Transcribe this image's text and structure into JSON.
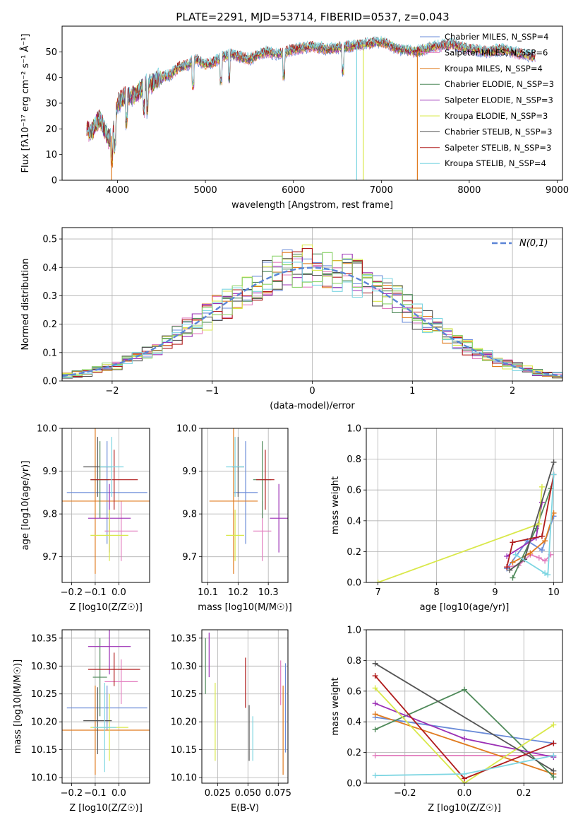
{
  "figure": {
    "title": "PLATE=2291, MJD=53714, FIBERID=0537, z=0.043"
  },
  "chart_data": [
    {
      "id": "spectrum",
      "type": "line",
      "xlabel": "wavelength [Angstrom, rest frame]",
      "ylabel": "Flux [fλ10⁻¹⁷ erg cm⁻² s⁻¹ Å⁻¹]",
      "xlim": [
        3370,
        9060
      ],
      "ylim": [
        0,
        60
      ],
      "xticks": [
        4000,
        5000,
        6000,
        7000,
        8000,
        9000
      ],
      "yticks": [
        0,
        10,
        20,
        30,
        40,
        50
      ],
      "envelope": {
        "x": [
          3650,
          3700,
          3750,
          3800,
          3850,
          3900,
          3950,
          4000,
          4100,
          4200,
          4300,
          4400,
          4500,
          4600,
          4700,
          4800,
          4900,
          5000,
          5100,
          5200,
          5300,
          5400,
          5500,
          5600,
          5700,
          5800,
          5900,
          6000,
          6200,
          6400,
          6600,
          6800,
          7000,
          7200,
          7400,
          7600,
          7800,
          8000,
          8200,
          8400,
          8600,
          8750
        ],
        "y": [
          20,
          18,
          22,
          24,
          20,
          16,
          18,
          30,
          33,
          33,
          37,
          38,
          40,
          41,
          44,
          45,
          47,
          45,
          46,
          48,
          49,
          48,
          47,
          49,
          50,
          49,
          50,
          51,
          52,
          51,
          52,
          53,
          54,
          51,
          50,
          52,
          53,
          51,
          50,
          51,
          49,
          48
        ]
      },
      "series": [
        {
          "name": "Chabrier MILES, N_SSP=4",
          "color": "#6a8bd8"
        },
        {
          "name": "Salpeter MILES, N_SSP=6",
          "color": "#e37ebf"
        },
        {
          "name": "Kroupa MILES, N_SSP=4",
          "color": "#e07b1f"
        },
        {
          "name": "Chabrier ELODIE, N_SSP=3",
          "color": "#4f8a5a"
        },
        {
          "name": "Salpeter ELODIE, N_SSP=3",
          "color": "#9b2fb5"
        },
        {
          "name": "Kroupa ELODIE, N_SSP=3",
          "color": "#d9e84a"
        },
        {
          "name": "Chabrier STELIB, N_SSP=3",
          "color": "#555555"
        },
        {
          "name": "Salpeter STELIB, N_SSP=3",
          "color": "#b01c1c"
        },
        {
          "name": "Kroupa STELIB, N_SSP=4",
          "color": "#7ed6e2"
        }
      ]
    },
    {
      "id": "residuals",
      "type": "line",
      "xlabel": "(data-model)/error",
      "ylabel": "Normed distribution",
      "xlim": [
        -2.5,
        2.5
      ],
      "ylim": [
        0,
        0.54
      ],
      "xticks": [
        -2,
        -1,
        0,
        1,
        2
      ],
      "yticks": [
        0.0,
        0.1,
        0.2,
        0.3,
        0.4,
        0.5
      ],
      "grid": true,
      "legend": {
        "label": "N(0,1)",
        "position": "top-right"
      },
      "hist_bin_width": 0.1,
      "hist_colors": [
        "#6a8bd8",
        "#e37ebf",
        "#e07b1f",
        "#4f8a5a",
        "#9b2fb5",
        "#d9e84a",
        "#555555",
        "#b01c1c",
        "#7ed6e2",
        "#8bd36a"
      ]
    },
    {
      "id": "age-vs-Z",
      "type": "scatter",
      "xlabel": "Z [log10(Z/Z☉)]",
      "ylabel": "age  [log10(age/yr)]",
      "xlim": [
        -0.24,
        0.13
      ],
      "ylim": [
        9.64,
        10.0
      ],
      "xticks": [
        -0.2,
        -0.1,
        0.0
      ],
      "yticks": [
        9.7,
        9.8,
        9.9,
        10.0
      ],
      "grid": true,
      "points": [
        {
          "x": -0.05,
          "y": 9.85,
          "xerr": 0.17,
          "yerr": 0.12,
          "color": "#6a8bd8"
        },
        {
          "x": 0.01,
          "y": 9.76,
          "xerr": 0.07,
          "yerr": 0.07,
          "color": "#e37ebf"
        },
        {
          "x": -0.1,
          "y": 9.83,
          "xerr": 0.3,
          "yerr": 0.17,
          "color": "#e07b1f"
        },
        {
          "x": -0.08,
          "y": 9.88,
          "xerr": 0.04,
          "yerr": 0.09,
          "color": "#4f8a5a"
        },
        {
          "x": -0.04,
          "y": 9.79,
          "xerr": 0.09,
          "yerr": 0.08,
          "color": "#9b2fb5"
        },
        {
          "x": -0.04,
          "y": 9.75,
          "xerr": 0.08,
          "yerr": 0.06,
          "color": "#d9e84a"
        },
        {
          "x": -0.09,
          "y": 9.91,
          "xerr": 0.06,
          "yerr": 0.07,
          "color": "#555555"
        },
        {
          "x": -0.02,
          "y": 9.88,
          "xerr": 0.1,
          "yerr": 0.07,
          "color": "#b01c1c"
        },
        {
          "x": -0.03,
          "y": 9.91,
          "xerr": 0.05,
          "yerr": 0.07,
          "color": "#7ed6e2"
        }
      ]
    },
    {
      "id": "age-vs-mass",
      "type": "scatter",
      "xlabel": "mass [log10(M/M☉)]",
      "xlim": [
        10.08,
        10.365
      ],
      "ylim": [
        9.64,
        10.0
      ],
      "xticks": [
        10.1,
        10.2,
        10.3
      ],
      "yticks": [
        9.7,
        9.8,
        9.9,
        10.0
      ],
      "grid": true,
      "points": [
        {
          "x": 10.225,
          "y": 9.85,
          "xerr": 0.04,
          "yerr": 0.12,
          "color": "#6a8bd8"
        },
        {
          "x": 10.28,
          "y": 9.76,
          "xerr": 0.03,
          "yerr": 0.07,
          "color": "#e37ebf"
        },
        {
          "x": 10.185,
          "y": 9.83,
          "xerr": 0.08,
          "yerr": 0.17,
          "color": "#e07b1f"
        },
        {
          "x": 10.28,
          "y": 9.88,
          "xerr": 0.03,
          "yerr": 0.09,
          "color": "#4f8a5a"
        },
        {
          "x": 10.335,
          "y": 9.79,
          "xerr": 0.03,
          "yerr": 0.08,
          "color": "#9b2fb5"
        },
        {
          "x": 10.19,
          "y": 9.75,
          "xerr": 0.03,
          "yerr": 0.06,
          "color": "#d9e84a"
        },
        {
          "x": 10.2,
          "y": 9.91,
          "xerr": 0.02,
          "yerr": 0.07,
          "color": "#555555"
        },
        {
          "x": 10.29,
          "y": 9.88,
          "xerr": 0.03,
          "yerr": 0.07,
          "color": "#b01c1c"
        },
        {
          "x": 10.19,
          "y": 9.91,
          "xerr": 0.03,
          "yerr": 0.07,
          "color": "#7ed6e2"
        }
      ]
    },
    {
      "id": "mass-weight-vs-age",
      "type": "line",
      "xlabel": "age  [log10(age/yr)]",
      "ylabel": "mass weight",
      "xlim": [
        6.8,
        10.15
      ],
      "ylim": [
        0,
        1.0
      ],
      "xticks": [
        7,
        8,
        9,
        10
      ],
      "yticks": [
        0.0,
        0.2,
        0.4,
        0.6,
        0.8,
        1.0
      ],
      "grid": true,
      "series": [
        {
          "color": "#6a8bd8",
          "x": [
            9.2,
            9.55,
            9.8,
            10.0
          ],
          "y": [
            0.09,
            0.27,
            0.21,
            0.43
          ]
        },
        {
          "color": "#e37ebf",
          "x": [
            9.2,
            9.4,
            9.6,
            9.75,
            9.85,
            9.95
          ],
          "y": [
            0.1,
            0.11,
            0.18,
            0.16,
            0.14,
            0.18
          ]
        },
        {
          "color": "#e07b1f",
          "x": [
            9.3,
            9.6,
            9.85,
            10.0
          ],
          "y": [
            0.13,
            0.19,
            0.27,
            0.45
          ]
        },
        {
          "color": "#4f8a5a",
          "x": [
            9.3,
            9.7,
            9.95
          ],
          "y": [
            0.03,
            0.35,
            0.61
          ]
        },
        {
          "color": "#9b2fb5",
          "x": [
            9.2,
            9.7,
            9.8
          ],
          "y": [
            0.17,
            0.29,
            0.52
          ]
        },
        {
          "color": "#d9e84a",
          "x": [
            7.0,
            9.75,
            9.8
          ],
          "y": [
            0.0,
            0.38,
            0.62
          ]
        },
        {
          "color": "#555555",
          "x": [
            9.25,
            9.5,
            10.0
          ],
          "y": [
            0.08,
            0.15,
            0.78
          ]
        },
        {
          "color": "#b01c1c",
          "x": [
            9.2,
            9.3,
            9.8,
            10.0
          ],
          "y": [
            0.1,
            0.26,
            0.3,
            0.7
          ]
        },
        {
          "color": "#7ed6e2",
          "x": [
            9.35,
            9.85,
            9.9,
            10.0
          ],
          "y": [
            0.18,
            0.06,
            0.05,
            0.7
          ]
        }
      ]
    },
    {
      "id": "mass-vs-Z",
      "type": "scatter",
      "xlabel": "Z [log10(Z/Z☉)]",
      "ylabel": "mass [log10(M/M☉)]",
      "xlim": [
        -0.24,
        0.13
      ],
      "ylim": [
        10.09,
        10.365
      ],
      "xticks": [
        -0.2,
        -0.1,
        0.0
      ],
      "yticks": [
        10.1,
        10.15,
        10.2,
        10.25,
        10.3,
        10.35
      ],
      "grid": true,
      "points": [
        {
          "x": -0.05,
          "y": 10.225,
          "xerr": 0.17,
          "yerr": 0.04,
          "color": "#6a8bd8"
        },
        {
          "x": 0.01,
          "y": 10.272,
          "xerr": 0.07,
          "yerr": 0.04,
          "color": "#e37ebf"
        },
        {
          "x": -0.1,
          "y": 10.185,
          "xerr": 0.3,
          "yerr": 0.08,
          "color": "#e07b1f"
        },
        {
          "x": -0.08,
          "y": 10.28,
          "xerr": 0.03,
          "yerr": 0.07,
          "color": "#4f8a5a"
        },
        {
          "x": -0.04,
          "y": 10.335,
          "xerr": 0.09,
          "yerr": 0.05,
          "color": "#9b2fb5"
        },
        {
          "x": -0.04,
          "y": 10.19,
          "xerr": 0.08,
          "yerr": 0.06,
          "color": "#d9e84a"
        },
        {
          "x": -0.09,
          "y": 10.202,
          "xerr": 0.06,
          "yerr": 0.06,
          "color": "#555555"
        },
        {
          "x": -0.02,
          "y": 10.294,
          "xerr": 0.11,
          "yerr": 0.03,
          "color": "#b01c1c"
        },
        {
          "x": -0.06,
          "y": 10.19,
          "xerr": 0.05,
          "yerr": 0.08,
          "color": "#7ed6e2"
        }
      ]
    },
    {
      "id": "mass-vs-EBV",
      "type": "scatter",
      "xlabel": "E(B-V)",
      "xlim": [
        0.012,
        0.083
      ],
      "ylim": [
        10.09,
        10.365
      ],
      "xticks": [
        0.025,
        0.05,
        0.075
      ],
      "yticks": [
        10.1,
        10.15,
        10.2,
        10.25,
        10.3,
        10.35
      ],
      "grid": true,
      "points": [
        {
          "x": 0.081,
          "y": 10.225,
          "xerr": 0,
          "yerr": 0.08,
          "color": "#6a8bd8"
        },
        {
          "x": 0.077,
          "y": 10.27,
          "xerr": 0,
          "yerr": 0.04,
          "color": "#e37ebf"
        },
        {
          "x": 0.079,
          "y": 10.185,
          "xerr": 0,
          "yerr": 0.08,
          "color": "#e07b1f"
        },
        {
          "x": 0.015,
          "y": 10.3,
          "xerr": 0,
          "yerr": 0.05,
          "color": "#4f8a5a"
        },
        {
          "x": 0.018,
          "y": 10.32,
          "xerr": 0,
          "yerr": 0.04,
          "color": "#9b2fb5"
        },
        {
          "x": 0.023,
          "y": 10.2,
          "xerr": 0,
          "yerr": 0.07,
          "color": "#d9e84a"
        },
        {
          "x": 0.051,
          "y": 10.18,
          "xerr": 0,
          "yerr": 0.05,
          "color": "#555555"
        },
        {
          "x": 0.048,
          "y": 10.27,
          "xerr": 0,
          "yerr": 0.045,
          "color": "#b01c1c"
        },
        {
          "x": 0.054,
          "y": 10.17,
          "xerr": 0,
          "yerr": 0.04,
          "color": "#7ed6e2"
        }
      ]
    },
    {
      "id": "mass-weight-vs-Z",
      "type": "line",
      "xlabel": "Z [log10(Z/Z☉)]",
      "ylabel": "mass weight",
      "xlim": [
        -0.33,
        0.33
      ],
      "ylim": [
        0,
        1.0
      ],
      "xticks": [
        -0.2,
        0.0,
        0.2
      ],
      "yticks": [
        0.0,
        0.2,
        0.4,
        0.6,
        0.8,
        1.0
      ],
      "grid": true,
      "series": [
        {
          "color": "#6a8bd8",
          "x": [
            -0.3,
            0.3
          ],
          "y": [
            0.43,
            0.26
          ]
        },
        {
          "color": "#e37ebf",
          "x": [
            -0.3,
            0.3
          ],
          "y": [
            0.18,
            0.18
          ]
        },
        {
          "color": "#e07b1f",
          "x": [
            -0.3,
            0.3
          ],
          "y": [
            0.45,
            0.06
          ]
        },
        {
          "color": "#4f8a5a",
          "x": [
            -0.3,
            0.0,
            0.3
          ],
          "y": [
            0.35,
            0.61,
            0.04
          ]
        },
        {
          "color": "#9b2fb5",
          "x": [
            -0.3,
            0.0,
            0.3
          ],
          "y": [
            0.52,
            0.29,
            0.17
          ]
        },
        {
          "color": "#d9e84a",
          "x": [
            -0.3,
            0.0,
            0.3
          ],
          "y": [
            0.62,
            0.0,
            0.38
          ]
        },
        {
          "color": "#555555",
          "x": [
            -0.3,
            0.3
          ],
          "y": [
            0.78,
            0.08
          ]
        },
        {
          "color": "#b01c1c",
          "x": [
            -0.3,
            0.0,
            0.3
          ],
          "y": [
            0.7,
            0.03,
            0.26
          ]
        },
        {
          "color": "#7ed6e2",
          "x": [
            -0.3,
            0.0,
            0.3
          ],
          "y": [
            0.05,
            0.06,
            0.18
          ]
        }
      ]
    }
  ]
}
